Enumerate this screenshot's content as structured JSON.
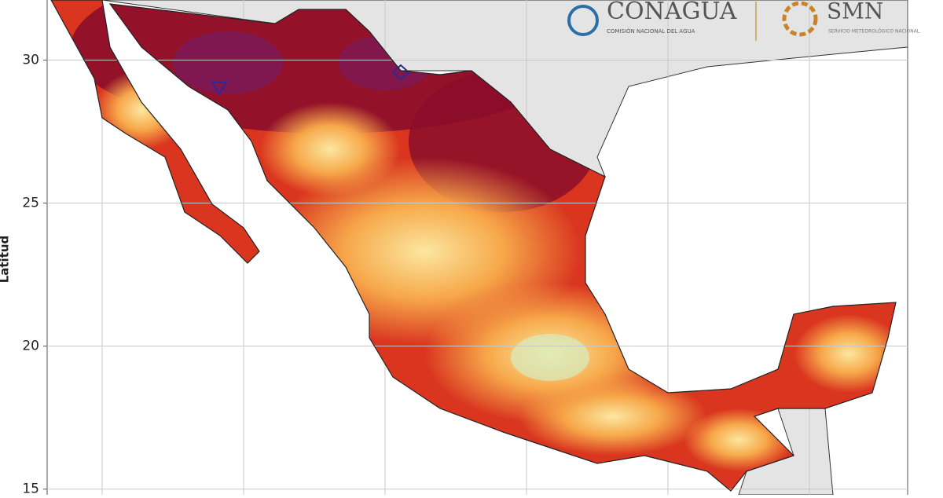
{
  "header": {
    "logo1": "CONAGUA",
    "logo1_sub": "COMISIÓN NACIONAL DEL AGUA",
    "logo2": "SMN",
    "logo2_sub": "SERVICIO METEOROLÓGICO NACIONAL"
  },
  "chart_data": {
    "type": "map",
    "y_label": "Latitud",
    "ylim": [
      14.8,
      32.1
    ],
    "yticks": [
      15,
      20,
      25,
      30
    ],
    "grid": true
  }
}
